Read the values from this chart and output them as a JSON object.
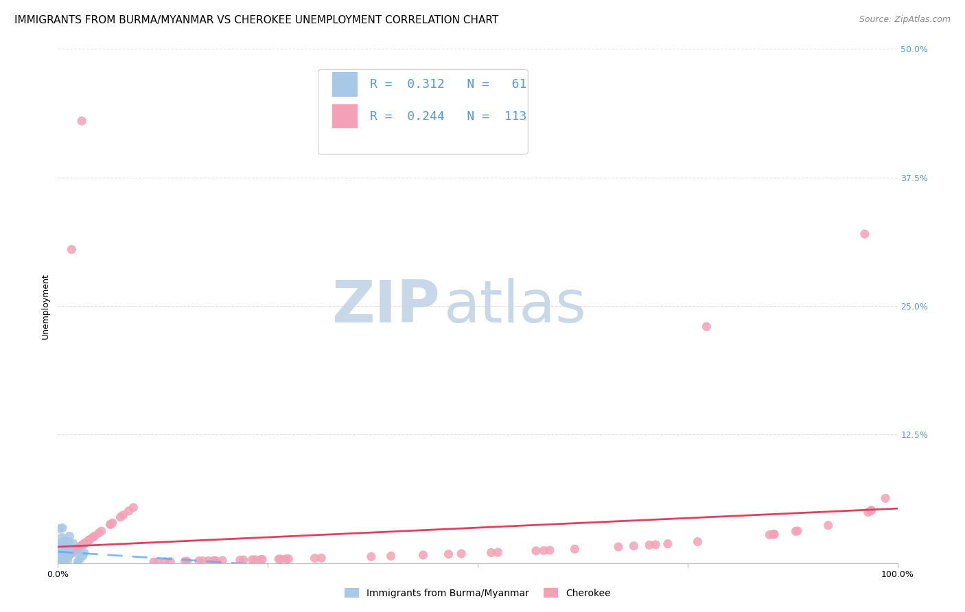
{
  "title": "IMMIGRANTS FROM BURMA/MYANMAR VS CHEROKEE UNEMPLOYMENT CORRELATION CHART",
  "source": "Source: ZipAtlas.com",
  "ylabel": "Unemployment",
  "xlim": [
    0,
    1.0
  ],
  "ylim": [
    0,
    0.5
  ],
  "xtick_positions": [
    0.0,
    0.25,
    0.5,
    0.75,
    1.0
  ],
  "xticklabels": [
    "0.0%",
    "",
    "",
    "",
    "100.0%"
  ],
  "ytick_positions": [
    0.0,
    0.125,
    0.25,
    0.375,
    0.5
  ],
  "ytick_labels": [
    "",
    "12.5%",
    "25.0%",
    "37.5%",
    "50.0%"
  ],
  "watermark_zip": "ZIP",
  "watermark_atlas": "atlas",
  "blue_color": "#a8c8e8",
  "pink_color": "#f4a0b8",
  "line_blue_color": "#5aaaee",
  "line_pink_color": "#e04060",
  "title_fontsize": 11,
  "source_fontsize": 9,
  "axis_label_fontsize": 9,
  "tick_fontsize": 9,
  "legend_fontsize": 13,
  "watermark_zip_color": "#c8d8e8",
  "watermark_atlas_color": "#c8d8e8",
  "grid_color": "#e0e0e0",
  "background_color": "#ffffff",
  "ytick_color": "#5599dd"
}
